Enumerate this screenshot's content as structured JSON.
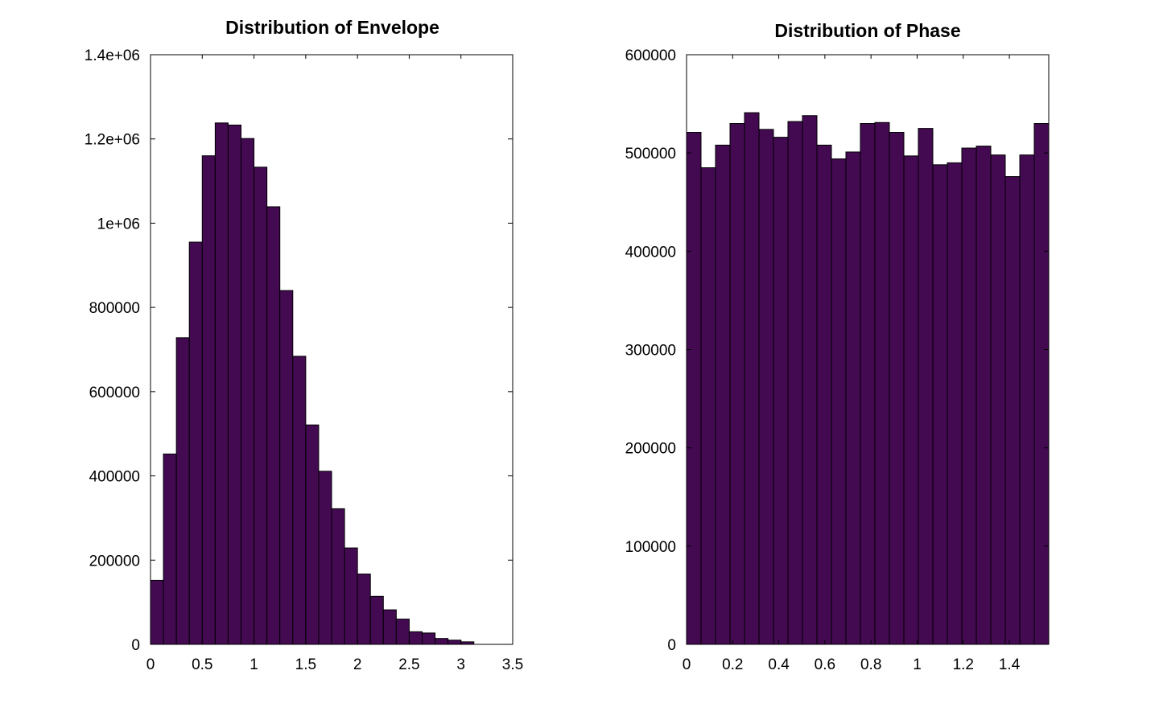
{
  "chart_data": [
    {
      "type": "bar",
      "title": "Distribution of Envelope",
      "xlabel": "",
      "ylabel": "",
      "xlim": [
        0,
        3.5
      ],
      "ylim": [
        0,
        1400000
      ],
      "bar_color": "#430a52",
      "edge_color": "#000000",
      "grid": false,
      "xticks": [
        0,
        0.5,
        1,
        1.5,
        2,
        2.5,
        3,
        3.5
      ],
      "xtick_labels": [
        "0",
        "0.5",
        "1",
        "1.5",
        "2",
        "2.5",
        "3",
        "3.5"
      ],
      "yticks": [
        0,
        200000,
        400000,
        600000,
        800000,
        1000000,
        1200000,
        1400000
      ],
      "ytick_labels": [
        "0",
        "200000",
        "400000",
        "600000",
        "800000",
        "1e+06",
        "1.2e+06",
        "1.4e+06"
      ],
      "bin_width": 0.125,
      "bin_centers": [
        0.0625,
        0.1875,
        0.3125,
        0.4375,
        0.5625,
        0.6875,
        0.8125,
        0.9375,
        1.0625,
        1.1875,
        1.3125,
        1.4375,
        1.5625,
        1.6875,
        1.8125,
        1.9375,
        2.0625,
        2.1875,
        2.3125,
        2.4375,
        2.5625,
        2.6875,
        2.8125,
        2.9375,
        3.0625
      ],
      "values": [
        152000,
        452000,
        728000,
        955000,
        1160000,
        1238000,
        1233000,
        1201000,
        1133000,
        1039000,
        840000,
        684000,
        521000,
        411000,
        322000,
        229000,
        167000,
        114000,
        82000,
        60000,
        30000,
        27000,
        14000,
        10000,
        6000
      ]
    },
    {
      "type": "bar",
      "title": "Distribution of Phase",
      "xlabel": "",
      "ylabel": "",
      "xlim": [
        0,
        1.5708
      ],
      "ylim": [
        0,
        600000
      ],
      "bar_color": "#430a52",
      "edge_color": "#000000",
      "grid": false,
      "xticks": [
        0,
        0.2,
        0.4,
        0.6,
        0.8,
        1,
        1.2,
        1.4
      ],
      "xtick_labels": [
        "0",
        "0.2",
        "0.4",
        "0.6",
        "0.8",
        "1",
        "1.2",
        "1.4"
      ],
      "yticks": [
        0,
        100000,
        200000,
        300000,
        400000,
        500000,
        600000
      ],
      "ytick_labels": [
        "0",
        "100000",
        "200000",
        "300000",
        "400000",
        "500000",
        "600000"
      ],
      "bin_width": 0.0628,
      "bin_centers": [
        0.0314,
        0.0942,
        0.157,
        0.2199,
        0.2827,
        0.3456,
        0.4084,
        0.4712,
        0.5341,
        0.5969,
        0.6597,
        0.7226,
        0.7854,
        0.8482,
        0.9111,
        0.9739,
        1.0367,
        1.0996,
        1.1624,
        1.2252,
        1.2881,
        1.3509,
        1.4137,
        1.4766,
        1.5394
      ],
      "values": [
        521000,
        485000,
        508000,
        530000,
        541000,
        524000,
        516000,
        532000,
        538000,
        508000,
        494000,
        501000,
        530000,
        531000,
        521000,
        497000,
        525000,
        488000,
        490000,
        505000,
        507000,
        498000,
        476000,
        498000,
        530000
      ]
    }
  ]
}
